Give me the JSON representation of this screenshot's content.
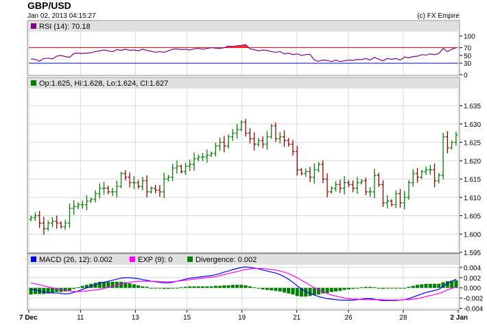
{
  "header": {
    "title": "GBP/USD",
    "timestamp": "Jan 02, 2013 04:15:27",
    "copyright": "(c) FX Empire"
  },
  "colors": {
    "up_bar": "#008000",
    "down_bar": "#990000",
    "rsi_line": "#800080",
    "rsi_overbought_line": "#ff0000",
    "rsi_oversold_line": "#0000ff",
    "rsi_overbought_fill": "#ff3333",
    "macd_line": "#0000ff",
    "exp_line": "#ff00ff",
    "divergence_bar": "#008000",
    "legend_bar_bg": "#e0e0e0",
    "grid": "#d8d8d8"
  },
  "chart_data": [
    {
      "type": "line",
      "name": "rsi",
      "legend": "RSI (14): 70.18",
      "ylim": [
        0,
        110
      ],
      "yticks": [
        "100",
        "70",
        "50",
        "30",
        "0"
      ],
      "yticks_values": [
        100,
        70,
        50,
        30,
        0
      ],
      "overbought": 70,
      "oversold": 30,
      "values": [
        41,
        40,
        35,
        42,
        43,
        41,
        48,
        50,
        47,
        45,
        55,
        56,
        55,
        56,
        57,
        60,
        62,
        64,
        62,
        60,
        65,
        63,
        66,
        63,
        64,
        62,
        66,
        63,
        61,
        58,
        60,
        58,
        62,
        66,
        67,
        65,
        66,
        64,
        67,
        68,
        66,
        68,
        70,
        69,
        68,
        70,
        74,
        73,
        75,
        76,
        78,
        67,
        65,
        62,
        64,
        63,
        60,
        58,
        60,
        54,
        56,
        52,
        54,
        50,
        52,
        53,
        38,
        35,
        38,
        37,
        34,
        38,
        34,
        36,
        38,
        37,
        40,
        39,
        42,
        38,
        45,
        40,
        36,
        42,
        40,
        42,
        38,
        46,
        44,
        47,
        48,
        52,
        51,
        54,
        52,
        55,
        68,
        60,
        66,
        70
      ]
    },
    {
      "type": "ohlc",
      "name": "price",
      "legend": "Op:1.625, Hi:1.628, Lo:1.624, Cl:1.627",
      "ylim": [
        1.595,
        1.6395
      ],
      "yticks": [
        "1.635",
        "1.630",
        "1.625",
        "1.620",
        "1.615",
        "1.610",
        "1.605",
        "1.600",
        "1.595"
      ],
      "yticks_values": [
        1.635,
        1.63,
        1.625,
        1.62,
        1.615,
        1.61,
        1.605,
        1.6,
        1.595
      ],
      "closes": [
        1.6045,
        1.605,
        1.603,
        1.6015,
        1.603,
        1.6035,
        1.603,
        1.602,
        1.603,
        1.607,
        1.6075,
        1.608,
        1.608,
        1.609,
        1.6095,
        1.611,
        1.6125,
        1.6125,
        1.6115,
        1.6115,
        1.613,
        1.6165,
        1.6155,
        1.614,
        1.614,
        1.613,
        1.6145,
        1.6115,
        1.6125,
        1.612,
        1.6115,
        1.615,
        1.6155,
        1.618,
        1.6185,
        1.617,
        1.6185,
        1.619,
        1.6205,
        1.621,
        1.621,
        1.6215,
        1.622,
        1.624,
        1.625,
        1.624,
        1.6265,
        1.6275,
        1.6285,
        1.6305,
        1.6275,
        1.626,
        1.6245,
        1.6255,
        1.6245,
        1.6265,
        1.6295,
        1.626,
        1.6265,
        1.6255,
        1.6245,
        1.6225,
        1.6175,
        1.6165,
        1.617,
        1.6155,
        1.6175,
        1.619,
        1.615,
        1.6115,
        1.6125,
        1.6135,
        1.6125,
        1.614,
        1.6135,
        1.6125,
        1.614,
        1.6145,
        1.6115,
        1.6115,
        1.616,
        1.6135,
        1.6085,
        1.609,
        1.608,
        1.611,
        1.6085,
        1.61,
        1.614,
        1.6165,
        1.6155,
        1.617,
        1.6175,
        1.6175,
        1.6145,
        1.616,
        1.6265,
        1.6235,
        1.625,
        1.627
      ]
    },
    {
      "type": "bar+line",
      "name": "macd",
      "legend": {
        "macd": "MACD (26, 12): 0.002",
        "exp": "EXP (9): 0",
        "divergence": "Divergence: 0.002"
      },
      "ylim": [
        -0.0042,
        0.0044
      ],
      "yticks": [
        "0.004",
        "0.002",
        "0.000",
        "-0.002",
        "-0.004"
      ],
      "yticks_values": [
        0.004,
        0.002,
        0.0,
        -0.002,
        -0.004
      ],
      "macd": [
        -0.0003,
        -0.0004,
        -0.0006,
        -0.0008,
        -0.0009,
        -0.001,
        -0.001,
        -0.0011,
        -0.0012,
        -0.0011,
        -0.0009,
        -0.0006,
        -0.0003,
        0.0,
        0.0003,
        0.0006,
        0.0009,
        0.0011,
        0.0013,
        0.0015,
        0.0017,
        0.0019,
        0.002,
        0.002,
        0.0019,
        0.0018,
        0.0016,
        0.0015,
        0.0013,
        0.0012,
        0.0011,
        0.001,
        0.001,
        0.0011,
        0.0013,
        0.0015,
        0.0017,
        0.0019,
        0.002,
        0.0021,
        0.0022,
        0.0023,
        0.0024,
        0.0026,
        0.0028,
        0.0031,
        0.0033,
        0.0036,
        0.0038,
        0.004,
        0.0041,
        0.004,
        0.0039,
        0.0037,
        0.0035,
        0.0033,
        0.0031,
        0.0029,
        0.0026,
        0.0022,
        0.0017,
        0.0011,
        0.0004,
        -0.0002,
        -0.0007,
        -0.0011,
        -0.0014,
        -0.0017,
        -0.0019,
        -0.0021,
        -0.0022,
        -0.0023,
        -0.0024,
        -0.0024,
        -0.0024,
        -0.0024,
        -0.0023,
        -0.0022,
        -0.0021,
        -0.0021,
        -0.0022,
        -0.0024,
        -0.0025,
        -0.0025,
        -0.0025,
        -0.0025,
        -0.0024,
        -0.0023,
        -0.0021,
        -0.0018,
        -0.0015,
        -0.0012,
        -0.0009,
        -0.0007,
        -0.0005,
        -0.0003,
        0.0003,
        0.0009,
        0.0013,
        0.0017
      ],
      "exp": [
        0.001,
        0.0008,
        0.0006,
        0.0004,
        0.0002,
        0.0,
        -0.0002,
        -0.0003,
        -0.0005,
        -0.0006,
        -0.0007,
        -0.0007,
        -0.0007,
        -0.0006,
        -0.0005,
        -0.0004,
        -0.0003,
        -0.0001,
        0.0001,
        0.0003,
        0.0005,
        0.0007,
        0.0009,
        0.0011,
        0.0012,
        0.0013,
        0.0013,
        0.0013,
        0.0013,
        0.0013,
        0.0012,
        0.0012,
        0.0012,
        0.0012,
        0.0013,
        0.0014,
        0.0015,
        0.0016,
        0.0017,
        0.0018,
        0.0019,
        0.002,
        0.0021,
        0.0022,
        0.0024,
        0.0026,
        0.0028,
        0.003,
        0.0032,
        0.0034,
        0.0036,
        0.0037,
        0.0038,
        0.0038,
        0.0038,
        0.0037,
        0.0036,
        0.0035,
        0.0033,
        0.0031,
        0.0028,
        0.0024,
        0.002,
        0.0015,
        0.001,
        0.0005,
        0.0,
        -0.0004,
        -0.0008,
        -0.0011,
        -0.0014,
        -0.0016,
        -0.0018,
        -0.002,
        -0.0021,
        -0.0022,
        -0.0022,
        -0.0023,
        -0.0023,
        -0.0023,
        -0.0023,
        -0.0023,
        -0.0023,
        -0.0024,
        -0.0024,
        -0.0024,
        -0.0024,
        -0.0023,
        -0.0023,
        -0.0022,
        -0.0021,
        -0.0019,
        -0.0017,
        -0.0015,
        -0.0013,
        -0.0011,
        -0.0008,
        -0.0004,
        -0.0001,
        0.0002
      ],
      "divergence": [
        -0.0013,
        -0.0012,
        -0.0012,
        -0.0012,
        -0.0011,
        -0.001,
        -0.0008,
        -0.0008,
        -0.0007,
        -0.0005,
        -0.0002,
        0.0001,
        0.0004,
        0.0006,
        0.0008,
        0.001,
        0.0012,
        0.0012,
        0.0012,
        0.0012,
        0.0012,
        0.0012,
        0.0011,
        0.0009,
        0.0007,
        0.0005,
        0.0003,
        0.0002,
        0.0,
        -0.0001,
        -0.0001,
        -0.0002,
        -0.0002,
        -0.0001,
        0.0,
        0.0001,
        0.0002,
        0.0003,
        0.0003,
        0.0003,
        0.0003,
        0.0003,
        0.0003,
        0.0004,
        0.0004,
        0.0005,
        0.0005,
        0.0006,
        0.0006,
        0.0006,
        0.0005,
        0.0003,
        0.0001,
        -0.0001,
        -0.0003,
        -0.0004,
        -0.0005,
        -0.0006,
        -0.0007,
        -0.0009,
        -0.0011,
        -0.0013,
        -0.0016,
        -0.0017,
        -0.0017,
        -0.0016,
        -0.0014,
        -0.0013,
        -0.0011,
        -0.001,
        -0.0008,
        -0.0007,
        -0.0006,
        -0.0004,
        -0.0003,
        -0.0002,
        -0.0001,
        0.0001,
        0.0002,
        0.0002,
        0.0001,
        -0.0001,
        -0.0002,
        -0.0001,
        -0.0001,
        -0.0001,
        0.0,
        0.0,
        0.0002,
        0.0004,
        0.0006,
        0.0007,
        0.0008,
        0.0008,
        0.0008,
        0.0008,
        0.0011,
        0.0013,
        0.0014,
        0.0015
      ]
    }
  ],
  "x_axis": {
    "tick_labels": [
      "7 Dec",
      "11",
      "13",
      "15",
      "19",
      "21",
      "26",
      "28",
      "2 Jan"
    ],
    "tick_bar_index": [
      0,
      16,
      33,
      49,
      66,
      83,
      99,
      116,
      133
    ],
    "bar_count": 100
  }
}
